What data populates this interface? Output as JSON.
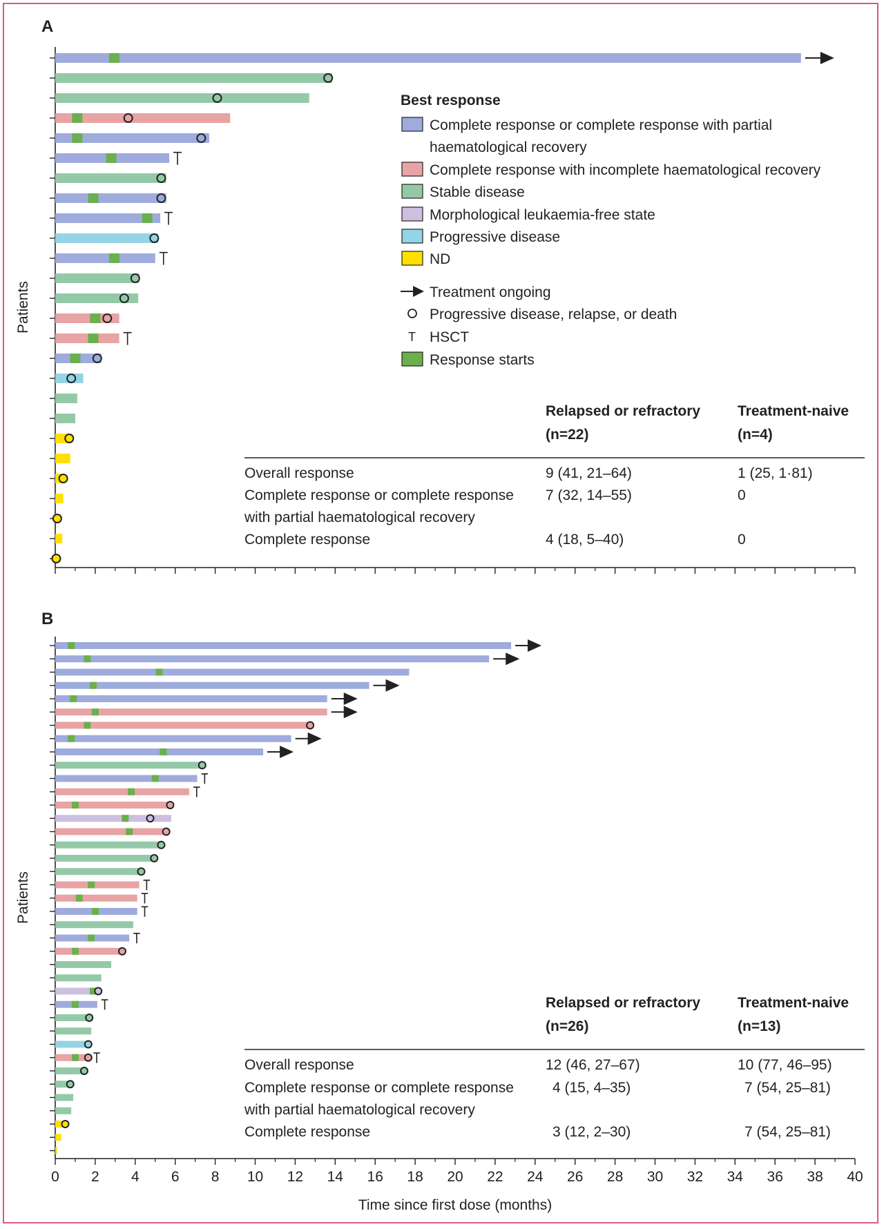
{
  "colors": {
    "CR": "#9fabdc",
    "CRi": "#e8a3a4",
    "SD": "#94c9a8",
    "MLFS": "#cdbfe0",
    "PD": "#94d4e4",
    "ND": "#ffe000",
    "response": "#6ab04c",
    "border": "#d9568c"
  },
  "legend": {
    "title": "Best response",
    "items": [
      {
        "key": "CR",
        "lines": [
          "Complete response or complete response with partial",
          "haematological recovery"
        ]
      },
      {
        "key": "CRi",
        "lines": [
          "Complete response with incomplete haematological recovery"
        ]
      },
      {
        "key": "SD",
        "lines": [
          "Stable disease"
        ]
      },
      {
        "key": "MLFS",
        "lines": [
          "Morphological leukaemia-free state"
        ]
      },
      {
        "key": "PD",
        "lines": [
          "Progressive disease"
        ]
      },
      {
        "key": "ND",
        "lines": [
          "ND"
        ]
      }
    ],
    "symbols": [
      {
        "icon": "arrow-icon",
        "label": "Treatment ongoing"
      },
      {
        "icon": "circle-icon",
        "label": "Progressive disease, relapse, or death"
      },
      {
        "icon": "hsct-icon",
        "glyph": "T",
        "label": "HSCT"
      },
      {
        "icon": "response-start-icon",
        "label": "Response starts"
      }
    ]
  },
  "axis": {
    "xlabel": "Time since first dose (months)",
    "ylabel": "Patients",
    "xlim": [
      0,
      40
    ],
    "ticks": [
      0,
      2,
      4,
      6,
      8,
      10,
      12,
      14,
      16,
      18,
      20,
      22,
      24,
      26,
      28,
      30,
      32,
      34,
      36,
      38,
      40
    ],
    "minor_ticks": [
      1,
      3,
      5,
      7,
      9,
      11,
      13,
      15,
      17,
      19,
      21,
      23,
      25,
      27,
      29,
      31,
      33,
      35,
      37,
      39
    ]
  },
  "chart_data": [
    {
      "panel": "A",
      "type": "bar",
      "orientation": "horizontal",
      "xlabel": "",
      "ylabel": "Patients",
      "xlim": [
        0,
        40
      ],
      "patients": [
        {
          "r": "CR",
          "end": 37.3,
          "start": 2.95,
          "arrow": true
        },
        {
          "r": "SD",
          "end": 13.85,
          "circle": 13.65
        },
        {
          "r": "SD",
          "end": 12.7,
          "circle": 8.1
        },
        {
          "r": "CRi",
          "end": 8.75,
          "start": 1.1,
          "circle": 3.65
        },
        {
          "r": "CR",
          "end": 7.7,
          "start": 1.1,
          "circle": 7.3
        },
        {
          "r": "CR",
          "end": 5.7,
          "start": 2.8,
          "hsct": true
        },
        {
          "r": "SD",
          "end": 5.55,
          "circle": 5.3
        },
        {
          "r": "CR",
          "end": 5.55,
          "start": 1.9,
          "circle": 5.3
        },
        {
          "r": "CR",
          "end": 5.25,
          "start": 4.6,
          "hsct": true
        },
        {
          "r": "PD",
          "end": 5.15,
          "circle": 4.95
        },
        {
          "r": "CR",
          "end": 5.0,
          "start": 2.95,
          "hsct": true
        },
        {
          "r": "SD",
          "end": 4.2,
          "circle": 4.0
        },
        {
          "r": "SD",
          "end": 4.15,
          "circle": 3.45
        },
        {
          "r": "CRi",
          "end": 3.2,
          "start": 2.0,
          "circle": 2.6
        },
        {
          "r": "CRi",
          "end": 3.2,
          "start": 1.9,
          "hsct": true
        },
        {
          "r": "CR",
          "end": 2.3,
          "start": 1.0,
          "circle": 2.1
        },
        {
          "r": "PD",
          "end": 1.4,
          "circle": 0.8
        },
        {
          "r": "SD",
          "end": 1.1
        },
        {
          "r": "SD",
          "end": 1.0
        },
        {
          "r": "ND",
          "end": 0.85,
          "circle": 0.7
        },
        {
          "r": "ND",
          "end": 0.75
        },
        {
          "r": "ND",
          "end": 0.4,
          "circle": 0.4
        },
        {
          "r": "ND",
          "end": 0.4
        },
        {
          "r": "ND",
          "end": 0.1,
          "circle": 0.1
        },
        {
          "r": "ND",
          "end": 0.35
        },
        {
          "r": "ND",
          "end": 0.0,
          "circle": 0.05
        }
      ],
      "table": {
        "columns": [
          "Relapsed or refractory",
          "Treatment-naive"
        ],
        "n": [
          "(n=22)",
          "(n=4)"
        ],
        "rows": [
          {
            "label": [
              "Overall response"
            ],
            "values": [
              "9 (41, 21–64)",
              "1 (25, 1·81)"
            ]
          },
          {
            "label": [
              "Complete response or complete response",
              "with partial haematological recovery"
            ],
            "values": [
              "7 (32, 14–55)",
              "0"
            ]
          },
          {
            "label": [
              "Complete response"
            ],
            "values": [
              "4 (18, 5–40)",
              "0"
            ]
          }
        ]
      }
    },
    {
      "panel": "B",
      "type": "bar",
      "orientation": "horizontal",
      "xlabel": "Time since first dose (months)",
      "ylabel": "Patients",
      "xlim": [
        0,
        40
      ],
      "patients": [
        {
          "r": "CR",
          "end": 22.8,
          "start": 0.8,
          "arrow": true
        },
        {
          "r": "CR",
          "end": 21.7,
          "start": 1.6,
          "arrow": true
        },
        {
          "r": "CR",
          "end": 17.7,
          "start": 5.2
        },
        {
          "r": "CR",
          "end": 15.7,
          "start": 1.9,
          "arrow": true
        },
        {
          "r": "CR",
          "end": 13.6,
          "start": 0.9,
          "arrow": true
        },
        {
          "r": "CRi",
          "end": 13.6,
          "start": 2.0,
          "arrow": true
        },
        {
          "r": "CRi",
          "end": 12.8,
          "start": 1.6,
          "circle": 12.75
        },
        {
          "r": "CR",
          "end": 11.8,
          "start": 0.8,
          "arrow": true
        },
        {
          "r": "CR",
          "end": 10.4,
          "start": 5.4,
          "arrow": true
        },
        {
          "r": "SD",
          "end": 7.4,
          "circle": 7.35
        },
        {
          "r": "CR",
          "end": 7.1,
          "start": 5.0,
          "hsct": true
        },
        {
          "r": "CRi",
          "end": 6.7,
          "start": 3.8,
          "hsct": true
        },
        {
          "r": "CRi",
          "end": 5.8,
          "start": 1.0,
          "circle": 5.75
        },
        {
          "r": "MLFS",
          "end": 5.8,
          "start": 3.5,
          "circle": 4.75
        },
        {
          "r": "CRi",
          "end": 5.6,
          "start": 3.7,
          "circle": 5.55
        },
        {
          "r": "SD",
          "end": 5.3,
          "circle": 5.3
        },
        {
          "r": "SD",
          "end": 5.1,
          "circle": 4.95
        },
        {
          "r": "SD",
          "end": 4.4,
          "circle": 4.3
        },
        {
          "r": "CRi",
          "end": 4.2,
          "start": 1.8,
          "hsct": true
        },
        {
          "r": "CRi",
          "end": 4.1,
          "start": 1.2,
          "hsct": true
        },
        {
          "r": "CR",
          "end": 4.1,
          "start": 2.0,
          "hsct": true
        },
        {
          "r": "SD",
          "end": 3.9
        },
        {
          "r": "CR",
          "end": 3.7,
          "start": 1.8,
          "hsct": true
        },
        {
          "r": "CRi",
          "end": 3.4,
          "start": 1.0,
          "circle": 3.35
        },
        {
          "r": "SD",
          "end": 2.8
        },
        {
          "r": "SD",
          "end": 2.3
        },
        {
          "r": "MLFS",
          "end": 2.15,
          "start": 1.9,
          "circle": 2.15
        },
        {
          "r": "CR",
          "end": 2.1,
          "start": 1.0,
          "hsct": true
        },
        {
          "r": "SD",
          "end": 1.85,
          "circle": 1.7
        },
        {
          "r": "SD",
          "end": 1.8
        },
        {
          "r": "PD",
          "end": 1.7,
          "circle": 1.65
        },
        {
          "r": "CRi",
          "end": 1.7,
          "start": 1.0,
          "circle": 1.65,
          "hsct": true
        },
        {
          "r": "SD",
          "end": 1.5,
          "circle": 1.45
        },
        {
          "r": "SD",
          "end": 0.85,
          "circle": 0.75
        },
        {
          "r": "SD",
          "end": 0.9
        },
        {
          "r": "SD",
          "end": 0.8
        },
        {
          "r": "ND",
          "end": 0.6,
          "circle": 0.5
        },
        {
          "r": "ND",
          "end": 0.3
        },
        {
          "r": "ND",
          "end": 0.1
        }
      ],
      "table": {
        "columns": [
          "Relapsed or refractory",
          "Treatment-naive"
        ],
        "n": [
          "(n=26)",
          "(n=13)"
        ],
        "rows": [
          {
            "label": [
              "Overall response"
            ],
            "values": [
              "12 (46, 27–67)",
              "10 (77, 46–95)"
            ]
          },
          {
            "label": [
              "Complete response or complete response",
              "with partial haematological recovery"
            ],
            "values": [
              "4 (15, 4–35)",
              "7 (54, 25–81)"
            ]
          },
          {
            "label": [
              "Complete response"
            ],
            "values": [
              "3 (12, 2–30)",
              "7 (54, 25–81)"
            ]
          }
        ]
      }
    }
  ]
}
